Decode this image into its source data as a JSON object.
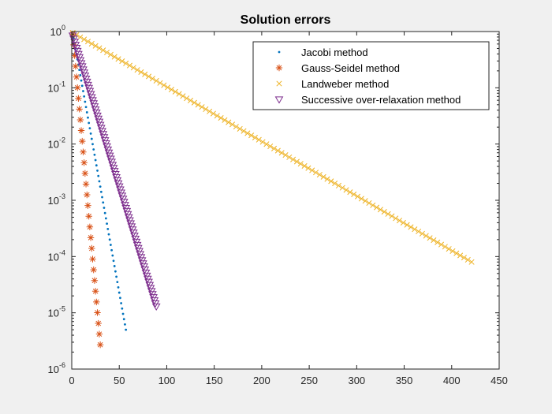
{
  "chart_data": {
    "type": "scatter",
    "title": "Solution errors",
    "xlabel": "",
    "ylabel": "",
    "xlim": [
      0,
      450
    ],
    "ylim": [
      1e-06,
      1
    ],
    "yscale": "log",
    "grid": false,
    "legend_location": "top-right",
    "x_ticks": [
      "0",
      "50",
      "100",
      "150",
      "200",
      "250",
      "300",
      "350",
      "400",
      "450"
    ],
    "y_ticks": [
      {
        "base": "10",
        "exp": "-6",
        "value": 1e-06
      },
      {
        "base": "10",
        "exp": "-5",
        "value": 1e-05
      },
      {
        "base": "10",
        "exp": "-4",
        "value": 0.0001
      },
      {
        "base": "10",
        "exp": "-3",
        "value": 0.001
      },
      {
        "base": "10",
        "exp": "-2",
        "value": 0.01
      },
      {
        "base": "10",
        "exp": "-1",
        "value": 0.1
      },
      {
        "base": "10",
        "exp": "0",
        "value": 1
      }
    ],
    "series": [
      {
        "name": "Jacobi method",
        "marker": "dot",
        "color": "#0072BD",
        "x_start": 1,
        "x_end": 57,
        "y_start": 0.95,
        "y_end": 5e-06,
        "step": 1
      },
      {
        "name": "Gauss-Seidel method",
        "marker": "asterisk",
        "color": "#D95319",
        "x_start": 1,
        "x_end": 30,
        "y_start": 0.9,
        "y_end": 2.7e-06,
        "step": 1
      },
      {
        "name": "Landweber method",
        "marker": "x",
        "color": "#EDB120",
        "x_start": 1,
        "x_end": 421,
        "y_start": 0.95,
        "y_end": 8e-05,
        "step": 4
      },
      {
        "name": "Successive over-relaxation method",
        "marker": "triangle-down",
        "color": "#7E2F8E",
        "x_start": 1,
        "x_end": 89,
        "y_start": 0.85,
        "y_end": 1.3e-05,
        "step": 1
      }
    ]
  }
}
